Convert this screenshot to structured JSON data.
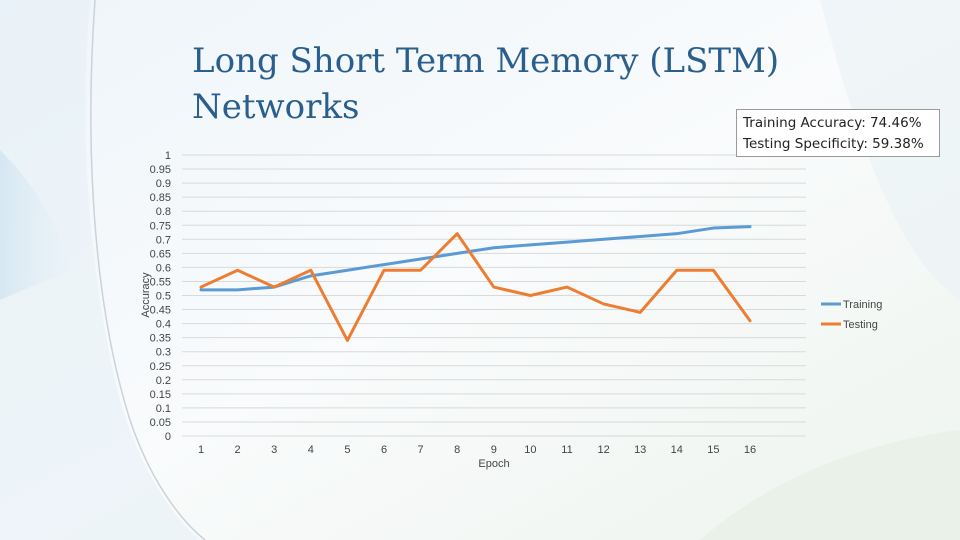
{
  "slide": {
    "title_lines": [
      "Long Short Term Memory (LSTM)",
      "Networks"
    ],
    "stats": {
      "training_accuracy": "Training Accuracy: 74.46%",
      "testing_specificity": "Testing Specificity: 59.38%"
    }
  },
  "chart_data": {
    "type": "line",
    "title": "",
    "xlabel": "Epoch",
    "ylabel": "Accuracy",
    "x": [
      1,
      2,
      3,
      4,
      5,
      6,
      7,
      8,
      9,
      10,
      11,
      12,
      13,
      14,
      15,
      16
    ],
    "ylim": [
      0,
      1
    ],
    "yticks": [
      "0",
      "0.05",
      "0.1",
      "0.15",
      "0.2",
      "0.25",
      "0.3",
      "0.35",
      "0.4",
      "0.45",
      "0.5",
      "0.55",
      "0.6",
      "0.65",
      "0.7",
      "0.75",
      "0.8",
      "0.85",
      "0.9",
      "0.95",
      "1"
    ],
    "grid": true,
    "legend_position": "right",
    "series": [
      {
        "name": "Training",
        "color": "#5b9bd5",
        "values": [
          0.52,
          0.52,
          0.53,
          0.57,
          0.59,
          0.61,
          0.63,
          0.65,
          0.67,
          0.68,
          0.69,
          0.7,
          0.71,
          0.72,
          0.74,
          0.745
        ]
      },
      {
        "name": "Testing",
        "color": "#ed7d31",
        "values": [
          0.53,
          0.59,
          0.53,
          0.59,
          0.34,
          0.59,
          0.59,
          0.72,
          0.53,
          0.5,
          0.53,
          0.47,
          0.44,
          0.59,
          0.59,
          0.41
        ]
      }
    ]
  }
}
